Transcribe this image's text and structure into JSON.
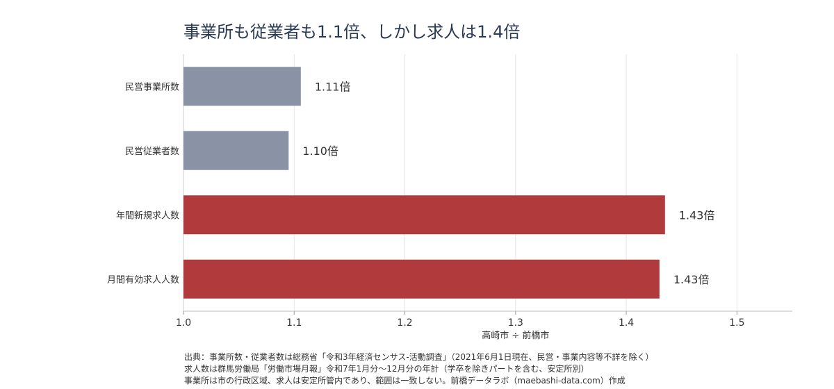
{
  "chart_data": {
    "type": "bar",
    "orientation": "horizontal",
    "title": "事業所も従業者も1.1倍、しかし求人は1.4倍",
    "xlabel": "高崎市 ÷ 前橋市",
    "ylabel": "",
    "xlim": [
      1.0,
      1.55
    ],
    "x_ticks": [
      1.0,
      1.1,
      1.2,
      1.3,
      1.4,
      1.5
    ],
    "x_tick_labels": [
      "1.0",
      "1.1",
      "1.2",
      "1.3",
      "1.4",
      "1.5"
    ],
    "grid": "vertical",
    "categories": [
      "民営事業所数",
      "民営従業者数",
      "年間新規求人数",
      "月間有効求人人数"
    ],
    "values": [
      1.106,
      1.095,
      1.435,
      1.43
    ],
    "data_labels": [
      "1.11倍",
      "1.10倍",
      "1.43倍",
      "1.43倍"
    ],
    "colors": [
      "#8a93a6",
      "#8a93a6",
      "#b03a3c",
      "#b03a3c"
    ]
  },
  "footnotes": [
    "出典：事業所数・従業者数は総務省「令和3年経済センサス-活動調査」（2021年6月1日現在、民営・事業内容等不詳を除く）",
    "求人数は群馬労働局「労働市場月報」令和7年1月分〜12月分の年計（学卒を除きパートを含む、安定所別）",
    "事業所は市の行政区域、求人は安定所管内であり、範囲は一致しない。前橋データラボ（maebashi-data.com）作成"
  ]
}
